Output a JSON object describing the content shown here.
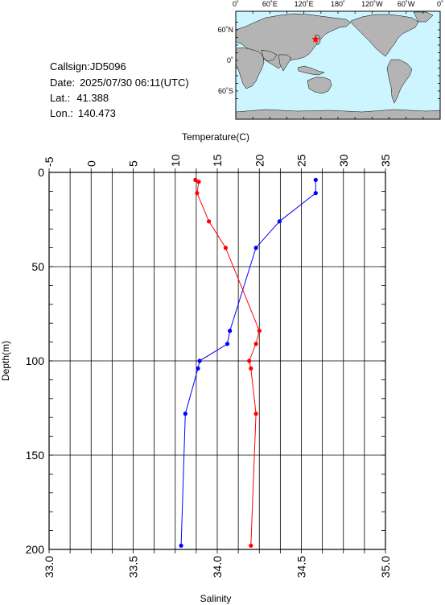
{
  "station": {
    "callsign_label": "Callsign:",
    "callsign": "JD5096",
    "date_label": "Date:",
    "date": "2025/07/30 06:11(UTC)",
    "lat_label": "Lat.:",
    "lat": "41.388",
    "lon_label": "Lon.:",
    "lon": "140.473"
  },
  "map": {
    "top_labels": [
      "0˚",
      "60˚E",
      "120˚E",
      "180˚",
      "120˚W",
      "60˚W",
      "0˚"
    ],
    "left_labels": [
      "60˚N",
      "0˚",
      "60˚S"
    ],
    "ocean_color": "#ccf5ff",
    "land_color": "#b4b4b4",
    "marker_color": "#ff0000"
  },
  "chart_data": {
    "type": "line",
    "temperature_axis": {
      "label": "Temperature(C)",
      "range": [
        -5,
        35
      ],
      "ticks": [
        "-5",
        "0",
        "5",
        "10",
        "15",
        "20",
        "25",
        "30",
        "35"
      ]
    },
    "salinity_axis": {
      "label": "Salinity",
      "range": [
        33.0,
        35.0
      ],
      "ticks": [
        "33.0",
        "33.5",
        "34.0",
        "34.5",
        "35.0"
      ]
    },
    "depth_axis": {
      "label": "Depth(m)",
      "range": [
        0,
        200
      ],
      "ticks": [
        "0",
        "50",
        "100",
        "150",
        "200"
      ]
    },
    "series": [
      {
        "quantity": "temperature",
        "color": "#0000ff",
        "depth": [
          4,
          11,
          26,
          40,
          84,
          91,
          100,
          104,
          128,
          198
        ],
        "values": [
          26.7,
          26.7,
          22.4,
          19.6,
          16.5,
          16.2,
          12.9,
          12.7,
          11.2,
          10.7
        ]
      },
      {
        "quantity": "salinity",
        "color": "#ff0000",
        "depth": [
          4,
          5,
          11,
          26,
          40,
          84,
          91,
          100,
          104,
          128,
          198
        ],
        "values": [
          33.87,
          33.89,
          33.88,
          33.95,
          34.05,
          34.25,
          34.23,
          34.19,
          34.2,
          34.23,
          34.2
        ]
      }
    ],
    "grid": true
  }
}
